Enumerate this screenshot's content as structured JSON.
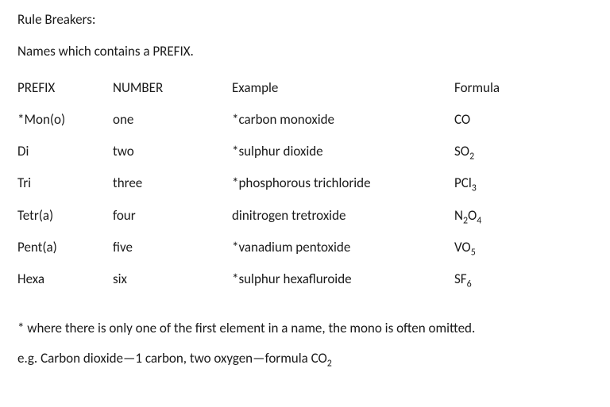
{
  "title": "Rule Breakers:",
  "subtitle": "Names which contains a PREFIX.",
  "headers": {
    "prefix": "PREFIX",
    "number": "NUMBER",
    "example": "Example",
    "formula": "Formula"
  },
  "rows": [
    {
      "prefix": "*Mon(o)",
      "number": "one",
      "example": "*carbon monoxide",
      "formula_html": "CO"
    },
    {
      "prefix": "Di",
      "number": "two",
      "example": "*sulphur dioxide",
      "formula_html": "SO<sub>2</sub>"
    },
    {
      "prefix": "Tri",
      "number": "three",
      "example": "*phosphorous trichloride",
      "formula_html": "PCl<sub>3</sub>"
    },
    {
      "prefix": "Tetr(a)",
      "number": "four",
      "example": "dinitrogen tretroxide",
      "formula_html": "N<sub>2</sub>O<sub>4</sub>"
    },
    {
      "prefix": "Pent(a)",
      "number": "five",
      "example": "*vanadium pentoxide",
      "formula_html": "VO<sub>5</sub>"
    },
    {
      "prefix": "Hexa",
      "number": "six",
      "example": "*sulphur hexafluroide",
      "formula_html": "SF<sub>6</sub>"
    }
  ],
  "footnote": "*  where there is only one of the first element in a name, the mono is often omitted.",
  "example_line_html": "e.g.  Carbon dioxide—1 carbon, two oxygen—formula CO<sub>2</sub>"
}
